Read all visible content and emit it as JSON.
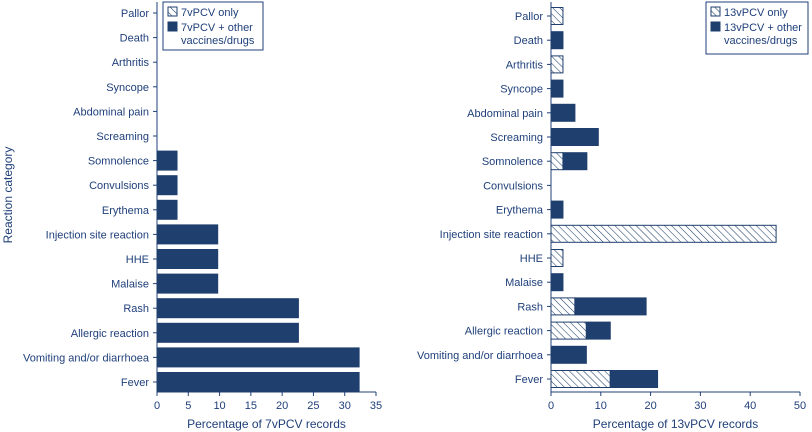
{
  "figure": {
    "ylabel": "Reaction category",
    "colors": {
      "text": "#1f3f7a",
      "bar": "#1f3f6e",
      "axis": "#1f3f7a",
      "hatch": "#1f3f6e"
    }
  },
  "chart_data": [
    {
      "type": "bar",
      "orientation": "horizontal",
      "stacked": true,
      "title": "",
      "xlabel": "Percentage of 7vPCV records",
      "ylabel": "Reaction category",
      "xlim": [
        0,
        35
      ],
      "xticks": [
        0,
        5,
        10,
        15,
        20,
        25,
        30,
        35
      ],
      "grid": false,
      "legend_position": "top-right",
      "categories": [
        "Pallor",
        "Death",
        "Arthritis",
        "Syncope",
        "Abdominal pain",
        "Screaming",
        "Somnolence",
        "Convulsions",
        "Erythema",
        "Injection site reaction",
        "HHE",
        "Malaise",
        "Rash",
        "Allergic reaction",
        "Vomiting and/or diarrhoea",
        "Fever"
      ],
      "series": [
        {
          "name": "7vPCV only",
          "pattern": "hatch",
          "values": [
            0,
            0,
            0,
            0,
            0,
            0,
            0,
            0,
            0,
            0,
            0,
            0,
            0,
            0,
            0,
            0
          ]
        },
        {
          "name": "7vPCV + other vaccines/drugs",
          "pattern": "solid",
          "values": [
            0,
            0,
            0,
            0,
            0,
            0,
            3.2,
            3.2,
            3.2,
            9.7,
            9.7,
            9.7,
            22.6,
            22.6,
            32.3,
            32.3
          ]
        }
      ]
    },
    {
      "type": "bar",
      "orientation": "horizontal",
      "stacked": true,
      "title": "",
      "xlabel": "Percentage of 13vPCV records",
      "ylabel": "",
      "xlim": [
        0,
        50
      ],
      "xticks": [
        0,
        10,
        20,
        30,
        40,
        50
      ],
      "grid": false,
      "legend_position": "top-right",
      "categories": [
        "Pallor",
        "Death",
        "Arthritis",
        "Syncope",
        "Abdominal pain",
        "Screaming",
        "Somnolence",
        "Convulsions",
        "Erythema",
        "Injection site reaction",
        "HHE",
        "Malaise",
        "Rash",
        "Allergic reaction",
        "Vomiting and/or diarrhoea",
        "Fever"
      ],
      "series": [
        {
          "name": "13vPCV only",
          "pattern": "hatch",
          "values": [
            2.4,
            0,
            2.4,
            0,
            0,
            0,
            2.4,
            0,
            0,
            45.2,
            2.4,
            0,
            4.8,
            7.1,
            0,
            11.9
          ]
        },
        {
          "name": "13vPCV + other vaccines/drugs",
          "pattern": "solid",
          "values": [
            0,
            2.4,
            0,
            2.4,
            4.8,
            9.5,
            4.8,
            0,
            2.4,
            0,
            0,
            2.4,
            14.3,
            4.8,
            7.1,
            9.5
          ]
        }
      ]
    }
  ]
}
